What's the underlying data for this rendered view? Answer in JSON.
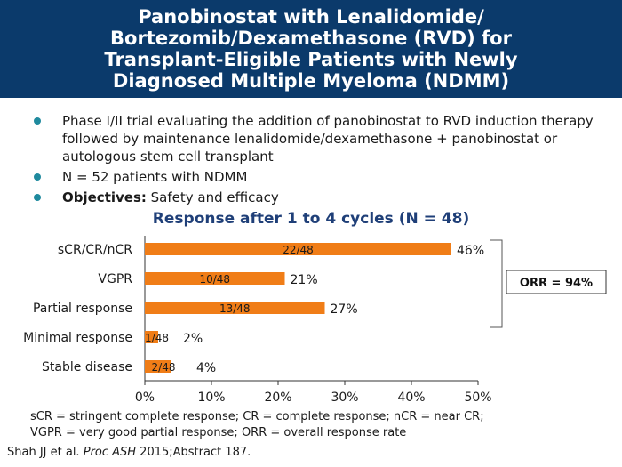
{
  "title_lines": [
    "Panobinostat with Lenalidomide/",
    "Bortezomib/Dexamethasone (RVD) for",
    "Transplant-Eligible Patients with Newly",
    "Diagnosed Multiple Myeloma (NDMM)"
  ],
  "bullets": [
    {
      "bold": "",
      "text": "Phase I/II trial evaluating the addition of panobinostat to RVD induction therapy followed by maintenance lenalidomide/dexamethasone + panobinostat or autologous stem cell transplant"
    },
    {
      "bold": "",
      "text": "N = 52 patients with NDMM"
    },
    {
      "bold": "Objectives:",
      "text": " Safety and efficacy"
    }
  ],
  "colors": {
    "title_bg": "#0b3a6b",
    "bar": "#f07d17",
    "bullet_dot": "#1f8a9e",
    "chart_title": "#1f3f78"
  },
  "chart_data": {
    "type": "bar",
    "orientation": "horizontal",
    "title": "Response after 1 to 4 cycles (N = 48)",
    "categories": [
      "sCR/CR/nCR",
      "VGPR",
      "Partial response",
      "Minimal response",
      "Stable disease"
    ],
    "values": [
      46,
      21,
      27,
      2,
      4
    ],
    "bar_labels": [
      "22/48",
      "10/48",
      "13/48",
      "1/48",
      "2/48"
    ],
    "value_labels": [
      "46%",
      "21%",
      "27%",
      "2%",
      "4%"
    ],
    "xlim": [
      0,
      50
    ],
    "xticks": [
      "0%",
      "10%",
      "20%",
      "30%",
      "40%",
      "50%"
    ],
    "grid": false,
    "annotation": "ORR = 94%"
  },
  "footnote_lines": [
    "sCR = stringent complete response; CR = complete response; nCR = near CR;",
    "VGPR = very good partial response; ORR = overall response rate"
  ],
  "citation": {
    "authors": "Shah JJ et al. ",
    "journal": "Proc ASH",
    "rest": " 2015;Abstract 187."
  }
}
